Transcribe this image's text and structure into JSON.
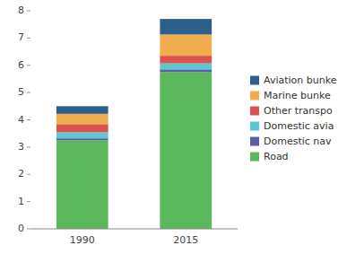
{
  "chart_data": {
    "type": "bar",
    "stacked": true,
    "categories": [
      "1990",
      "2015"
    ],
    "series": [
      {
        "name": "Road",
        "values": [
          3.25,
          5.75
        ],
        "color": "#5cb85c"
      },
      {
        "name": "Domestic nav",
        "values": [
          0.07,
          0.1
        ],
        "color": "#5b5ea6"
      },
      {
        "name": "Domestic avia",
        "values": [
          0.22,
          0.22
        ],
        "color": "#5bc8d4"
      },
      {
        "name": "Other transpo",
        "values": [
          0.3,
          0.28
        ],
        "color": "#d9534f"
      },
      {
        "name": "Marine bunke",
        "values": [
          0.38,
          0.78
        ],
        "color": "#f0ad4e"
      },
      {
        "name": "Aviation bunke",
        "values": [
          0.28,
          0.57
        ],
        "color": "#2c5f8a"
      }
    ],
    "ylim": [
      0,
      8
    ],
    "yticks": [
      0,
      1,
      2,
      3,
      4,
      5,
      6,
      7,
      8
    ],
    "grid": false,
    "legend": "right"
  }
}
